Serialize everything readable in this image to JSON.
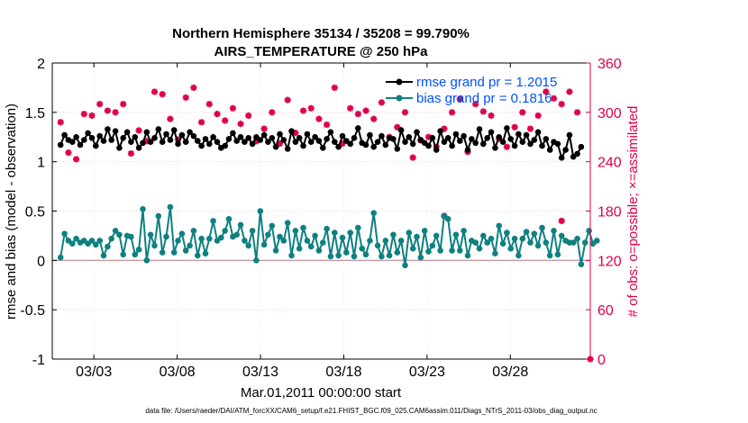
{
  "chart_data": {
    "type": "line",
    "title_line1": "Northern Hemisphere 35134 / 35208 = 99.790%",
    "title_line2": "AIRS_TEMPERATURE @ 250 hPa",
    "xlabel": "Mar.01,2011 00:00:00 start",
    "ylabel_left": "rmse and bias (model - observation)",
    "ylabel_right": "# of obs: o=possible; ×=assimilated",
    "ylim_left": [
      -1,
      2
    ],
    "ylim_right": [
      0,
      360
    ],
    "yticks_left": [
      "-1",
      "-0.5",
      "0",
      "0.5",
      "1",
      "1.5",
      "2"
    ],
    "yticks_right": [
      "0",
      "60",
      "120",
      "180",
      "240",
      "300",
      "360"
    ],
    "x_range_days": [
      0.5,
      32.8
    ],
    "xticks": [
      {
        "day": 3,
        "label": "03/03"
      },
      {
        "day": 8,
        "label": "03/08"
      },
      {
        "day": 13,
        "label": "03/13"
      },
      {
        "day": 18,
        "label": "03/18"
      },
      {
        "day": 23,
        "label": "03/23"
      },
      {
        "day": 28,
        "label": "03/28"
      }
    ],
    "footnote": "data file: /Users/raeder/DAI/ATM_forcXX/CAM6_setup/f.e21.FHIST_BGC.f09_025.CAM6assim.011/Diags_NTrS_2011-03/obs_diag_output.nc",
    "colors": {
      "rmse": "#000000",
      "bias": "#0f8080",
      "obs": "#e0004a",
      "zero_line": "#c0a0a8"
    },
    "series": [
      {
        "name": "rmse grand pr = 1.2015",
        "color": "#000000",
        "values": [
          1.17,
          1.27,
          1.22,
          1.2,
          1.25,
          1.17,
          1.22,
          1.29,
          1.24,
          1.16,
          1.26,
          1.21,
          1.33,
          1.22,
          1.31,
          1.14,
          1.24,
          1.3,
          1.2,
          1.25,
          1.14,
          1.19,
          1.3,
          1.2,
          1.24,
          1.33,
          1.2,
          1.28,
          1.22,
          1.32,
          1.18,
          1.27,
          1.2,
          1.3,
          1.26,
          1.21,
          1.16,
          1.23,
          1.18,
          1.25,
          1.2,
          1.14,
          1.16,
          1.23,
          1.29,
          1.21,
          1.25,
          1.2,
          1.24,
          1.18,
          1.25,
          1.22,
          1.27,
          1.2,
          1.24,
          1.15,
          1.28,
          1.22,
          1.13,
          1.31,
          1.2,
          1.24,
          1.16,
          1.28,
          1.2,
          1.25,
          1.21,
          1.14,
          1.23,
          1.3,
          1.2,
          1.15,
          1.26,
          1.21,
          1.18,
          1.24,
          1.34,
          1.19,
          1.17,
          1.27,
          1.15,
          1.2,
          1.26,
          1.17,
          1.24,
          1.23,
          1.13,
          1.32,
          1.2,
          1.25,
          1.18,
          1.3,
          1.22,
          1.19,
          1.16,
          1.24,
          1.12,
          1.31,
          1.2,
          1.24,
          1.16,
          1.28,
          1.21,
          1.26,
          1.12,
          1.23,
          1.19,
          1.33,
          1.18,
          1.24,
          1.3,
          1.14,
          1.25,
          1.2,
          1.34,
          1.23,
          1.16,
          1.28,
          1.2,
          1.27,
          1.18,
          1.22,
          1.3,
          1.16,
          1.23,
          1.12,
          1.2,
          1.18,
          1.04,
          1.12,
          1.27,
          1.05,
          1.08,
          1.15
        ]
      },
      {
        "name": "bias grand pr = 0.1816",
        "color": "#0f8080",
        "values": [
          0.03,
          0.27,
          0.2,
          0.17,
          0.22,
          0.18,
          0.2,
          0.17,
          0.2,
          0.16,
          0.2,
          0.05,
          0.14,
          0.22,
          0.3,
          0.26,
          0.06,
          0.25,
          0.24,
          0.06,
          0.11,
          0.52,
          0.0,
          0.26,
          0.15,
          0.45,
          0.08,
          0.24,
          0.54,
          0.08,
          0.2,
          0.27,
          0.1,
          0.15,
          0.3,
          0.05,
          0.22,
          0.07,
          0.22,
          0.4,
          0.2,
          0.23,
          0.3,
          0.42,
          0.24,
          0.26,
          0.36,
          0.2,
          0.15,
          0.3,
          0.0,
          0.5,
          0.16,
          0.26,
          0.35,
          0.1,
          0.24,
          0.2,
          0.38,
          0.05,
          0.3,
          0.12,
          0.33,
          0.2,
          0.14,
          0.25,
          0.1,
          0.18,
          0.32,
          0.04,
          0.28,
          0.05,
          0.23,
          0.08,
          0.28,
          0.04,
          0.33,
          0.12,
          0.06,
          0.2,
          0.48,
          0.15,
          0.04,
          0.2,
          0.05,
          0.26,
          0.08,
          0.2,
          -0.05,
          0.28,
          0.12,
          0.24,
          0.03,
          0.3,
          0.09,
          0.15,
          0.25,
          0.1,
          0.45,
          0.42,
          0.1,
          0.26,
          0.1,
          0.3,
          0.05,
          0.2,
          0.18,
          0.12,
          0.25,
          0.18,
          0.22,
          0.07,
          0.35,
          0.17,
          0.28,
          0.12,
          0.22,
          0.05,
          0.22,
          0.29,
          0.18,
          0.27,
          0.15,
          0.33,
          0.18,
          0.05,
          0.3,
          0.06,
          0.25,
          0.2,
          0.18,
          0.18,
          0.22,
          -0.04,
          0.18,
          0.3,
          0.17,
          0.2
        ]
      }
    ],
    "obs_possible": [
      288,
      309,
      251,
      240,
      243,
      289,
      298,
      291,
      296,
      294,
      310,
      320,
      302,
      315,
      300,
      260,
      310,
      278,
      250,
      325,
      278,
      268,
      265,
      286,
      325,
      310,
      322,
      301,
      292,
      326,
      267,
      258,
      318,
      265,
      330,
      280,
      288,
      300,
      310,
      324,
      298,
      280,
      290,
      300,
      305,
      312,
      286,
      280,
      296,
      300,
      265,
      255,
      280,
      240,
      300,
      292,
      262,
      304,
      315,
      300,
      275,
      250,
      302,
      290,
      305,
      280,
      292,
      338,
      285,
      301,
      330,
      300,
      262,
      276,
      305,
      291,
      298,
      268,
      302,
      300,
      292,
      308,
      312,
      260,
      270,
      298,
      282,
      304,
      300,
      300,
      245,
      272,
      266,
      300,
      270,
      320,
      258,
      262,
      280,
      292,
      300,
      265,
      316,
      276,
      252,
      262,
      310,
      300,
      301,
      276,
      296,
      285,
      268,
      316,
      258,
      280,
      282,
      265,
      300,
      310,
      280,
      275,
      296,
      290,
      325,
      305,
      317,
      255,
      310,
      300,
      325,
      301,
      300,
      281
    ],
    "obs_assimilated": [
      288,
      309,
      251,
      240,
      243,
      289,
      298,
      291,
      296,
      294,
      310,
      320,
      302,
      315,
      300,
      260,
      310,
      278,
      250,
      325,
      278,
      268,
      265,
      286,
      325,
      310,
      322,
      301,
      292,
      326,
      267,
      258,
      318,
      265,
      330,
      280,
      288,
      300,
      310,
      324,
      298,
      280,
      290,
      300,
      305,
      312,
      286,
      280,
      296,
      300,
      265,
      255,
      280,
      240,
      300,
      292,
      262,
      304,
      315,
      300,
      275,
      250,
      302,
      290,
      305,
      280,
      292,
      338,
      285,
      301,
      330,
      300,
      262,
      276,
      305,
      291,
      298,
      268,
      302,
      300,
      292,
      308,
      312,
      260,
      270,
      298,
      282,
      304,
      300,
      300,
      245,
      272,
      266,
      300,
      270,
      320,
      258,
      262,
      280,
      292,
      300,
      265,
      316,
      276,
      252,
      262,
      310,
      300,
      301,
      276,
      296,
      285,
      268,
      316,
      258,
      280,
      282,
      265,
      300,
      310,
      280,
      275,
      296,
      290,
      325,
      305,
      317,
      255,
      310,
      300,
      325,
      301,
      300,
      281
    ],
    "obs_outliers": [
      {
        "index": 98,
        "value": 174
      },
      {
        "index": 128,
        "value": 168
      },
      {
        "index": 136,
        "value": 0
      }
    ]
  }
}
